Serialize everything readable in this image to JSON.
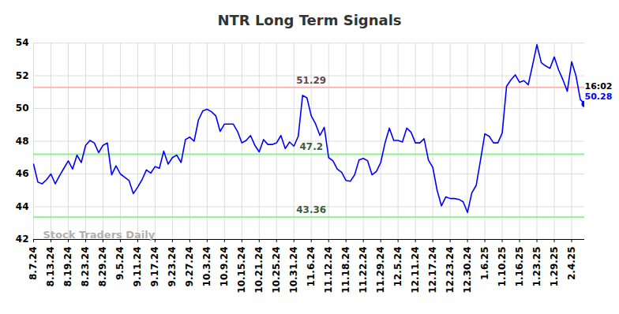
{
  "chart_data": {
    "type": "line",
    "title": "NTR Long Term Signals",
    "color": "#0000ff",
    "categories": [
      "8.7.24",
      null,
      null,
      null,
      "8.13.24",
      null,
      null,
      null,
      "8.19.24",
      null,
      null,
      null,
      "8.23.24",
      null,
      null,
      null,
      "8.29.24",
      null,
      null,
      null,
      "9.5.24",
      null,
      null,
      null,
      "9.11.24",
      null,
      null,
      null,
      "9.17.24",
      null,
      null,
      null,
      "9.23.24",
      null,
      null,
      null,
      "9.27.24",
      null,
      null,
      null,
      "10.3.24",
      null,
      null,
      null,
      "10.9.24",
      null,
      null,
      null,
      "10.15.24",
      null,
      null,
      null,
      "10.21.24",
      null,
      null,
      null,
      "10.25.24",
      null,
      null,
      null,
      "10.31.24",
      null,
      null,
      null,
      "11.6.24",
      null,
      null,
      null,
      "11.12.24",
      null,
      null,
      null,
      "11.18.24",
      null,
      null,
      null,
      "11.22.24",
      null,
      null,
      null,
      "11.29.24",
      null,
      null,
      null,
      "12.5.24",
      null,
      null,
      null,
      "12.11.24",
      null,
      null,
      null,
      "12.17.24",
      null,
      null,
      null,
      "12.23.24",
      null,
      null,
      null,
      "12.30.24",
      null,
      null,
      null,
      "1.6.25",
      null,
      null,
      null,
      "1.10.25",
      null,
      null,
      null,
      "1.16.25",
      null,
      null,
      null,
      "1.23.25",
      null,
      null,
      null,
      "1.29.25",
      null,
      null,
      null,
      "2.4.25",
      null,
      null,
      null
    ],
    "values": [
      46.6,
      45.5,
      45.4,
      45.65,
      46.0,
      45.4,
      45.9,
      46.35,
      46.8,
      46.3,
      47.15,
      46.7,
      47.75,
      48.05,
      47.9,
      47.3,
      47.75,
      47.9,
      45.95,
      46.5,
      46.0,
      45.8,
      45.6,
      44.8,
      45.2,
      45.65,
      46.25,
      46.05,
      46.45,
      46.35,
      47.4,
      46.6,
      47.0,
      47.15,
      46.7,
      48.1,
      48.25,
      48.0,
      49.3,
      49.85,
      49.95,
      49.8,
      49.55,
      48.6,
      49.05,
      49.05,
      49.05,
      48.6,
      47.9,
      48.05,
      48.35,
      47.75,
      47.35,
      48.1,
      47.8,
      47.8,
      47.9,
      48.35,
      47.55,
      47.95,
      47.7,
      48.3,
      50.8,
      50.65,
      49.55,
      49.05,
      48.35,
      48.85,
      47.0,
      46.8,
      46.3,
      46.1,
      45.6,
      45.55,
      45.95,
      46.85,
      46.95,
      46.8,
      45.95,
      46.15,
      46.7,
      47.9,
      48.8,
      48.05,
      48.05,
      47.95,
      48.8,
      48.55,
      47.9,
      47.9,
      48.15,
      46.85,
      46.4,
      45.0,
      44.05,
      44.6,
      44.5,
      44.5,
      44.45,
      44.3,
      43.65,
      44.85,
      45.3,
      46.85,
      48.45,
      48.3,
      47.9,
      47.9,
      48.5,
      51.35,
      51.75,
      52.05,
      51.6,
      51.7,
      51.45,
      52.65,
      53.9,
      52.8,
      52.6,
      52.45,
      53.15,
      52.35,
      51.75,
      51.05,
      52.85,
      52.0,
      50.55,
      50.28
    ],
    "ylim": [
      42,
      54
    ],
    "yticks": [
      42,
      44,
      46,
      48,
      50,
      52,
      54
    ],
    "grid": true,
    "reference_lines": [
      {
        "value": 51.29,
        "label": "51.29",
        "color": "#ffb3b3"
      },
      {
        "value": 47.2,
        "label": "47.2",
        "color": "#90ee90"
      },
      {
        "value": 43.36,
        "label": "43.36",
        "color": "#90ee90"
      }
    ],
    "time_label": "16:02",
    "watermark": "Stock Traders Daily"
  }
}
